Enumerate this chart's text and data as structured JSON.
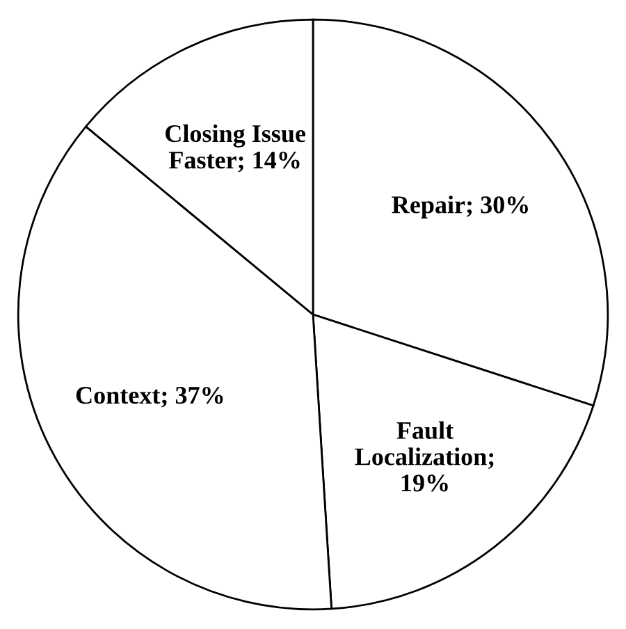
{
  "chart_data": {
    "type": "pie",
    "categories": [
      "Repair; 30%",
      "Fault\nLocalization;\n19%",
      "Context; 37%",
      "Closing Issue\nFaster; 14%"
    ],
    "values": [
      30,
      19,
      37,
      14
    ],
    "colors": [
      "#ffffff",
      "#ffffff",
      "#ffffff",
      "#ffffff"
    ]
  }
}
